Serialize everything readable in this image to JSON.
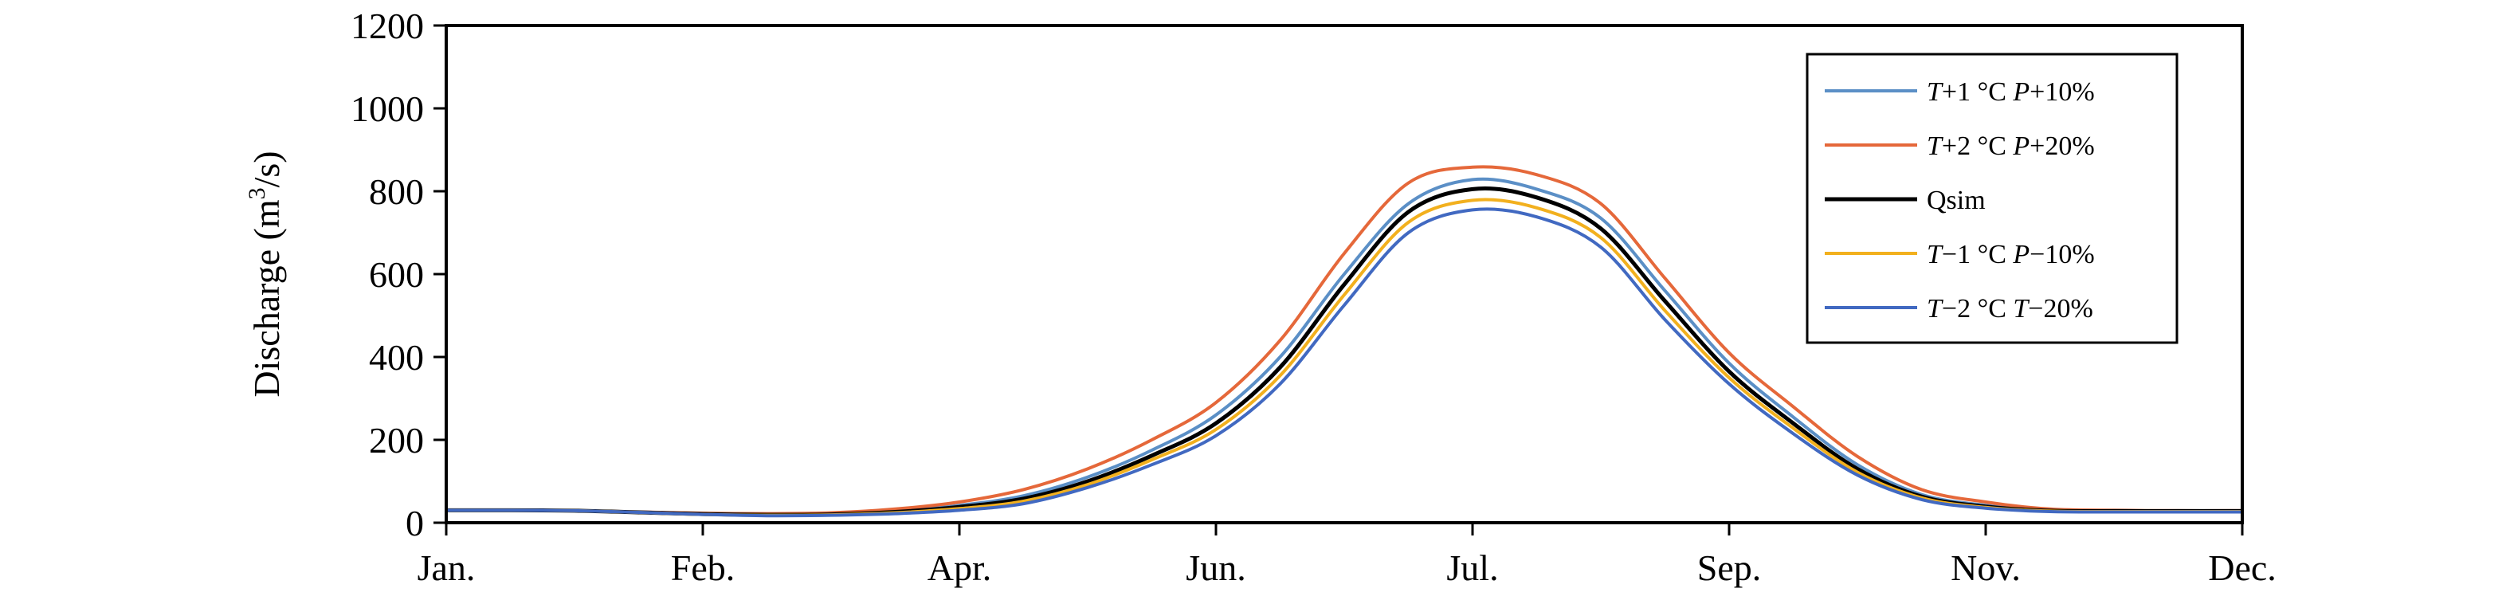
{
  "chart_data": {
    "type": "line",
    "xlabel": "",
    "ylabel": "Discharge (m³/s)",
    "ylabel_parts": {
      "before": "Discharge (m",
      "sup": "3",
      "after": "/s)"
    },
    "ylim": [
      0,
      1200
    ],
    "yticks": [
      "0",
      "200",
      "400",
      "600",
      "800",
      "1000",
      "1200"
    ],
    "xlim": [
      0,
      14
    ],
    "xtick_labels": [
      "Jan.",
      "Feb.",
      "Apr.",
      "Jun.",
      "Jul.",
      "Sep.",
      "Nov.",
      "Dec."
    ],
    "grid": false,
    "legend_position": "top-right",
    "x": [
      0,
      0.5,
      1,
      1.5,
      2,
      2.5,
      3,
      3.5,
      4,
      4.5,
      5,
      5.5,
      6,
      6.5,
      7,
      7.5,
      8,
      8.5,
      9,
      9.5,
      10,
      10.5,
      11,
      11.5,
      12,
      12.5,
      13,
      13.5,
      14
    ],
    "series": [
      {
        "name": "T+1 °C P+10%",
        "name_parts": [
          [
            "T",
            true
          ],
          [
            "+1 °C ",
            false
          ],
          [
            "P",
            true
          ],
          [
            "+10%",
            false
          ]
        ],
        "color": "#5b8fc6",
        "values": [
          30,
          30,
          29,
          26,
          22,
          20,
          21,
          28,
          42,
          65,
          110,
          175,
          260,
          400,
          600,
          770,
          828,
          805,
          735,
          560,
          385,
          255,
          140,
          68,
          42,
          30,
          28,
          28,
          28
        ]
      },
      {
        "name": "T+2 °C P+20%",
        "name_parts": [
          [
            "T",
            true
          ],
          [
            "+2 °C ",
            false
          ],
          [
            "P",
            true
          ],
          [
            "+20%",
            false
          ]
        ],
        "color": "#e5683a",
        "values": [
          30,
          30,
          29,
          26,
          23,
          22,
          24,
          33,
          50,
          80,
          130,
          200,
          290,
          440,
          650,
          820,
          858,
          840,
          770,
          590,
          410,
          280,
          160,
          80,
          50,
          33,
          30,
          29,
          29
        ]
      },
      {
        "name": "Qsim",
        "name_parts": [
          [
            "Qsim",
            false
          ]
        ],
        "color": "#000000",
        "values": [
          30,
          30,
          29,
          25,
          21,
          19,
          20,
          26,
          38,
          58,
          100,
          162,
          240,
          375,
          575,
          750,
          805,
          785,
          710,
          535,
          365,
          240,
          130,
          63,
          39,
          29,
          28,
          28,
          28
        ]
      },
      {
        "name": "T−1 °C P−10%",
        "name_parts": [
          [
            "T",
            true
          ],
          [
            "−1 °C ",
            false
          ],
          [
            "P",
            true
          ],
          [
            "−10%",
            false
          ]
        ],
        "color": "#f2b01e",
        "values": [
          30,
          30,
          29,
          25,
          20,
          18,
          19,
          24,
          34,
          52,
          92,
          152,
          225,
          355,
          550,
          725,
          778,
          760,
          688,
          512,
          350,
          228,
          122,
          60,
          37,
          28,
          27,
          27,
          27
        ]
      },
      {
        "name": "T−2 °C T−20%",
        "name_parts": [
          [
            "T",
            true
          ],
          [
            "−2 °C ",
            false
          ],
          [
            "T",
            true
          ],
          [
            "−20%",
            false
          ]
        ],
        "color": "#4169c1",
        "values": [
          30,
          30,
          29,
          25,
          20,
          17,
          18,
          22,
          30,
          46,
          85,
          140,
          210,
          335,
          525,
          700,
          755,
          738,
          665,
          490,
          335,
          215,
          115,
          56,
          35,
          27,
          26,
          26,
          26
        ]
      }
    ]
  }
}
